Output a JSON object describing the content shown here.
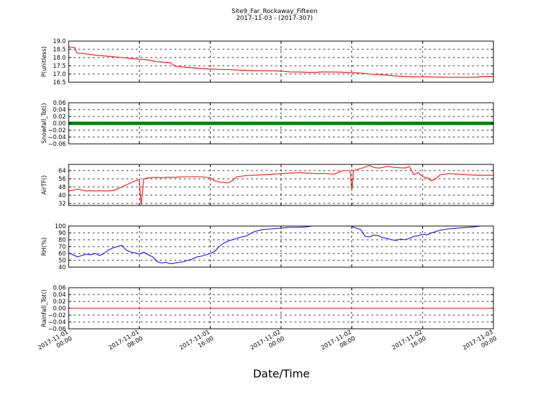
{
  "title": "Site9_Far_Rockaway_Fifteen",
  "subtitle": "2017-11-03 - (2017-307)",
  "xlabel": "Date/Time",
  "x_ticks": [
    {
      "t": 0,
      "line1": "2017-11-01",
      "line2": "00:00"
    },
    {
      "t": 8,
      "line1": "2017-11-01",
      "line2": "08:00"
    },
    {
      "t": 16,
      "line1": "2017-11-01",
      "line2": "16:00"
    },
    {
      "t": 24,
      "line1": "2017-11-02",
      "line2": "00:00"
    },
    {
      "t": 32,
      "line1": "2017-11-02",
      "line2": "08:00"
    },
    {
      "t": 40,
      "line1": "2017-11-02",
      "line2": "16:00"
    },
    {
      "t": 48,
      "line1": "2017-11-03",
      "line2": "00:00"
    }
  ],
  "chart_data": [
    {
      "type": "line",
      "ylabel": "P(unitless)",
      "ylim": [
        16.5,
        19.0
      ],
      "yticks": [
        "19.0",
        "18.5",
        "18.0",
        "17.5",
        "17.0",
        "16.5"
      ],
      "ytick_values": [
        19.0,
        18.5,
        18.0,
        17.5,
        17.0,
        16.5
      ],
      "grid": true,
      "color": "#ff0000",
      "x": [
        0,
        0.7,
        0.9,
        1,
        2,
        3,
        4,
        5,
        6,
        7,
        8,
        9,
        9.5,
        10,
        11,
        11.5,
        12,
        13,
        14,
        15,
        16,
        17,
        18,
        19,
        20,
        21,
        22,
        23,
        24,
        24.5,
        25,
        26,
        27,
        28,
        28.5,
        29,
        30,
        31,
        32,
        33,
        34,
        35,
        36,
        37,
        38,
        39,
        40,
        41,
        42,
        43,
        44,
        45,
        46,
        46.5,
        47,
        48
      ],
      "y": [
        18.65,
        18.6,
        18.3,
        18.27,
        18.22,
        18.15,
        18.1,
        18.05,
        18.0,
        17.95,
        17.9,
        17.85,
        17.8,
        17.75,
        17.7,
        17.68,
        17.48,
        17.42,
        17.38,
        17.33,
        17.3,
        17.28,
        17.27,
        17.24,
        17.22,
        17.2,
        17.2,
        17.19,
        17.18,
        17.15,
        17.13,
        17.12,
        17.1,
        17.1,
        17.13,
        17.12,
        17.12,
        17.11,
        17.08,
        17.05,
        17.0,
        16.97,
        16.93,
        16.88,
        16.85,
        16.83,
        16.83,
        16.82,
        16.81,
        16.8,
        16.8,
        16.8,
        16.8,
        16.84,
        16.85,
        16.85
      ]
    },
    {
      "type": "scatter",
      "ylabel": "Snowfall_Tot()",
      "ylim": [
        -0.06,
        0.06
      ],
      "yticks": [
        "0.06",
        "0.04",
        "0.02",
        "0.00",
        "−0.02",
        "−0.04",
        "−0.06"
      ],
      "ytick_values": [
        0.06,
        0.04,
        0.02,
        0.0,
        -0.02,
        -0.04,
        -0.06
      ],
      "grid": true,
      "color": "#008000",
      "x_range": [
        0,
        48
      ],
      "value": 0.0
    },
    {
      "type": "line",
      "ylabel": "AirTF()",
      "ylim": [
        30,
        70
      ],
      "yticks": [
        "64",
        "56",
        "48",
        "40",
        "32"
      ],
      "ytick_values": [
        64,
        56,
        48,
        40,
        32
      ],
      "grid": true,
      "color": "#ff0000",
      "x": [
        0,
        1,
        1.5,
        2,
        2.5,
        3,
        3.5,
        4,
        5,
        5.5,
        6,
        6.5,
        7,
        7.5,
        8,
        8.1,
        8.2,
        8.5,
        9,
        10,
        10.5,
        11,
        12,
        13,
        14,
        15,
        16,
        16.5,
        17,
        18,
        18.5,
        19,
        20,
        21,
        22,
        23,
        24,
        25,
        26,
        27,
        28,
        29,
        30,
        31,
        31.8,
        32,
        32.2,
        33,
        34,
        34.5,
        35,
        35.5,
        36,
        37,
        38,
        38.5,
        39,
        39.5,
        40,
        40.5,
        41,
        41.5,
        42,
        43,
        44,
        45,
        46,
        47,
        48
      ],
      "y": [
        44,
        46,
        45,
        44,
        44.5,
        44,
        44.5,
        44,
        44.5,
        46,
        48,
        50,
        52,
        54,
        55,
        38,
        31,
        56,
        57,
        57.5,
        57,
        57.5,
        57.5,
        58,
        58,
        58,
        57,
        54,
        53,
        52,
        54,
        58,
        59,
        59.5,
        60,
        60.5,
        61,
        61.5,
        62,
        61.5,
        61,
        61,
        60.5,
        64,
        64,
        45,
        64,
        66,
        69,
        67,
        66.5,
        67,
        68,
        67,
        66.5,
        68,
        60,
        62,
        58,
        57,
        54,
        56,
        60,
        61,
        60.5,
        60,
        59.5,
        59.5,
        59.5
      ]
    },
    {
      "type": "line",
      "ylabel": "RH(%)",
      "ylim": [
        40,
        100
      ],
      "yticks": [
        "100",
        "90",
        "80",
        "70",
        "60",
        "50",
        "40"
      ],
      "ytick_values": [
        100,
        90,
        80,
        70,
        60,
        50,
        40
      ],
      "grid": true,
      "color": "#0000ff",
      "segments": [
        {
          "x": [
            0,
            0.5,
            1,
            1.5,
            2,
            2.5,
            3,
            3.5,
            4,
            4.5,
            5,
            5.5,
            6,
            6.5,
            7,
            7.5,
            8,
            8.5,
            9,
            9.5,
            10,
            10.5,
            11,
            11.5,
            12,
            12.5,
            13,
            13.5,
            14,
            14.5,
            15,
            15.5,
            16,
            16.5,
            17,
            17.5,
            18,
            18.5,
            19,
            19.5,
            20,
            21,
            22,
            23,
            24,
            25,
            26,
            27,
            27.5
          ],
          "y": [
            61,
            58,
            55,
            57,
            59,
            58,
            60,
            57,
            60,
            65,
            68,
            70,
            72,
            65,
            62,
            61,
            59,
            62,
            58,
            55,
            48,
            46,
            47,
            45,
            46,
            47,
            48,
            50,
            52,
            55,
            56,
            58,
            60,
            63,
            70,
            75,
            78,
            80,
            82,
            84,
            85,
            92,
            95,
            96,
            97,
            98,
            98,
            99,
            100
          ]
        },
        {
          "x": [
            32,
            32.5,
            33,
            33.5,
            34,
            34.5,
            35,
            35.5,
            36,
            36.5,
            37,
            37.5,
            38,
            38.5,
            39,
            39.5,
            40,
            40.5,
            41,
            41.5,
            42,
            43,
            44,
            45,
            46,
            46.5
          ],
          "y": [
            99,
            97,
            95,
            85,
            84,
            87,
            86,
            83,
            82,
            80,
            79,
            81,
            80,
            82,
            85,
            86,
            88,
            87,
            90,
            92,
            94,
            96,
            97,
            98,
            99,
            100
          ]
        }
      ]
    },
    {
      "type": "line",
      "ylabel": "Rainfall_Tot()",
      "ylim": [
        -0.06,
        0.06
      ],
      "yticks": [
        "0.06",
        "0.04",
        "0.02",
        "0.00",
        "−0.02",
        "−0.04",
        "−0.06"
      ],
      "ytick_values": [
        0.06,
        0.04,
        0.02,
        0.0,
        -0.02,
        -0.04,
        -0.06
      ],
      "grid": true,
      "color": "#ff0000",
      "x": [
        0,
        48
      ],
      "y": [
        0.0,
        0.0
      ]
    }
  ]
}
